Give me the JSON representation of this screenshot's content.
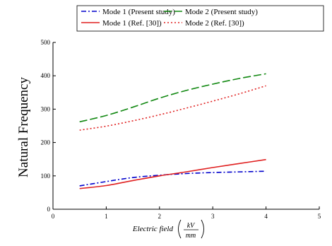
{
  "chart_data": {
    "type": "line",
    "xlabel": "Electric field",
    "xlabel_unit": {
      "numerator": "kV",
      "denominator": "mm"
    },
    "ylabel": "Natural Frequency",
    "xlim": [
      0,
      5
    ],
    "ylim": [
      0,
      500
    ],
    "xticks": [
      "0",
      "1",
      "2",
      "3",
      "4",
      "5"
    ],
    "yticks": [
      "0",
      "100",
      "200",
      "300",
      "400",
      "500"
    ],
    "grid": false,
    "legend_position": "top",
    "series": [
      {
        "name": "Mode 1 (Present study)",
        "color": "#0000cc",
        "dash": "dash-dot",
        "x": [
          0.5,
          1.0,
          1.5,
          2.0,
          2.5,
          3.0,
          3.5,
          4.0
        ],
        "y": [
          70,
          83,
          95,
          102,
          107,
          110,
          112,
          114
        ]
      },
      {
        "name": "Mode 2 (Present study)",
        "color": "#118811",
        "dash": "long-dash",
        "x": [
          0.5,
          1.0,
          1.5,
          2.0,
          2.5,
          3.0,
          3.5,
          4.0
        ],
        "y": [
          262,
          281,
          306,
          333,
          356,
          375,
          392,
          406
        ]
      },
      {
        "name": "Mode 1 (Ref. [30])",
        "color": "#e02020",
        "dash": "solid",
        "x": [
          0.5,
          1.0,
          1.5,
          2.0,
          2.5,
          3.0,
          3.5,
          4.0
        ],
        "y": [
          62,
          71,
          86,
          100,
          112,
          125,
          137,
          149
        ]
      },
      {
        "name": "Mode 2 (Ref. [30])",
        "color": "#e02020",
        "dash": "dotted",
        "x": [
          0.5,
          1.0,
          1.5,
          2.0,
          2.5,
          3.0,
          3.5,
          4.0
        ],
        "y": [
          237,
          249,
          265,
          283,
          303,
          324,
          346,
          370
        ]
      }
    ]
  }
}
